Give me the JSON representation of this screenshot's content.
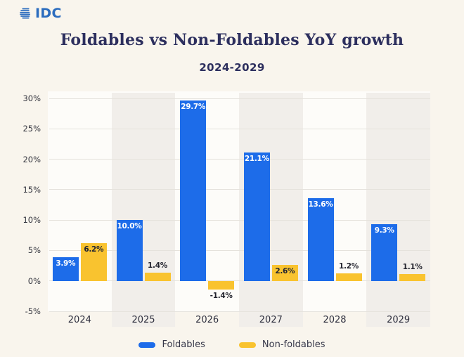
{
  "logo": {
    "text": "IDC"
  },
  "header": {
    "title": "Foldables vs Non-Foldables YoY growth",
    "subtitle": "2024-2029"
  },
  "chart_data": {
    "type": "bar",
    "title": "Foldables vs Non-Foldables YoY growth",
    "subtitle": "2024-2029",
    "categories": [
      "2024",
      "2025",
      "2026",
      "2027",
      "2028",
      "2029"
    ],
    "series": [
      {
        "name": "Foldables",
        "color": "#1d6ce9",
        "values": [
          3.9,
          10.0,
          29.7,
          21.1,
          13.6,
          9.3
        ],
        "labels": [
          "3.9%",
          "10.0%",
          "29.7%",
          "21.1%",
          "13.6%",
          "9.3%"
        ]
      },
      {
        "name": "Non-foldables",
        "color": "#f9c32f",
        "values": [
          6.2,
          1.4,
          -1.4,
          2.6,
          1.2,
          1.1
        ],
        "labels": [
          "6.2%",
          "1.4%",
          "-1.4%",
          "2.6%",
          "1.2%",
          "1.1%"
        ]
      }
    ],
    "y_axis": {
      "max": 30,
      "min": -5,
      "step": 5,
      "ticks": [
        "30%",
        "25%",
        "20%",
        "15%",
        "10%",
        "5%",
        "0%",
        "-5%"
      ]
    },
    "grid": true,
    "legend_position": "bottom",
    "striped_category_indexes": [
      1,
      3,
      5
    ]
  },
  "legend": {
    "items": [
      {
        "label": "Foldables",
        "color": "#1d6ce9"
      },
      {
        "label": "Non-foldables",
        "color": "#f9c32f"
      }
    ]
  },
  "colors": {
    "page_bg": "#f9f5ed",
    "plot_bg": "#fdfcf9",
    "stripe": "#f1eeea",
    "gridline": "#e5e2dc",
    "title": "#2d2f5e",
    "axis_text": "#35363f",
    "category_text": "#2e2f3e",
    "legend_text": "#363749",
    "bar_label_light": "#ffffff",
    "bar_label_dark": "#212531",
    "logo_blue": "#2b6cbe"
  }
}
